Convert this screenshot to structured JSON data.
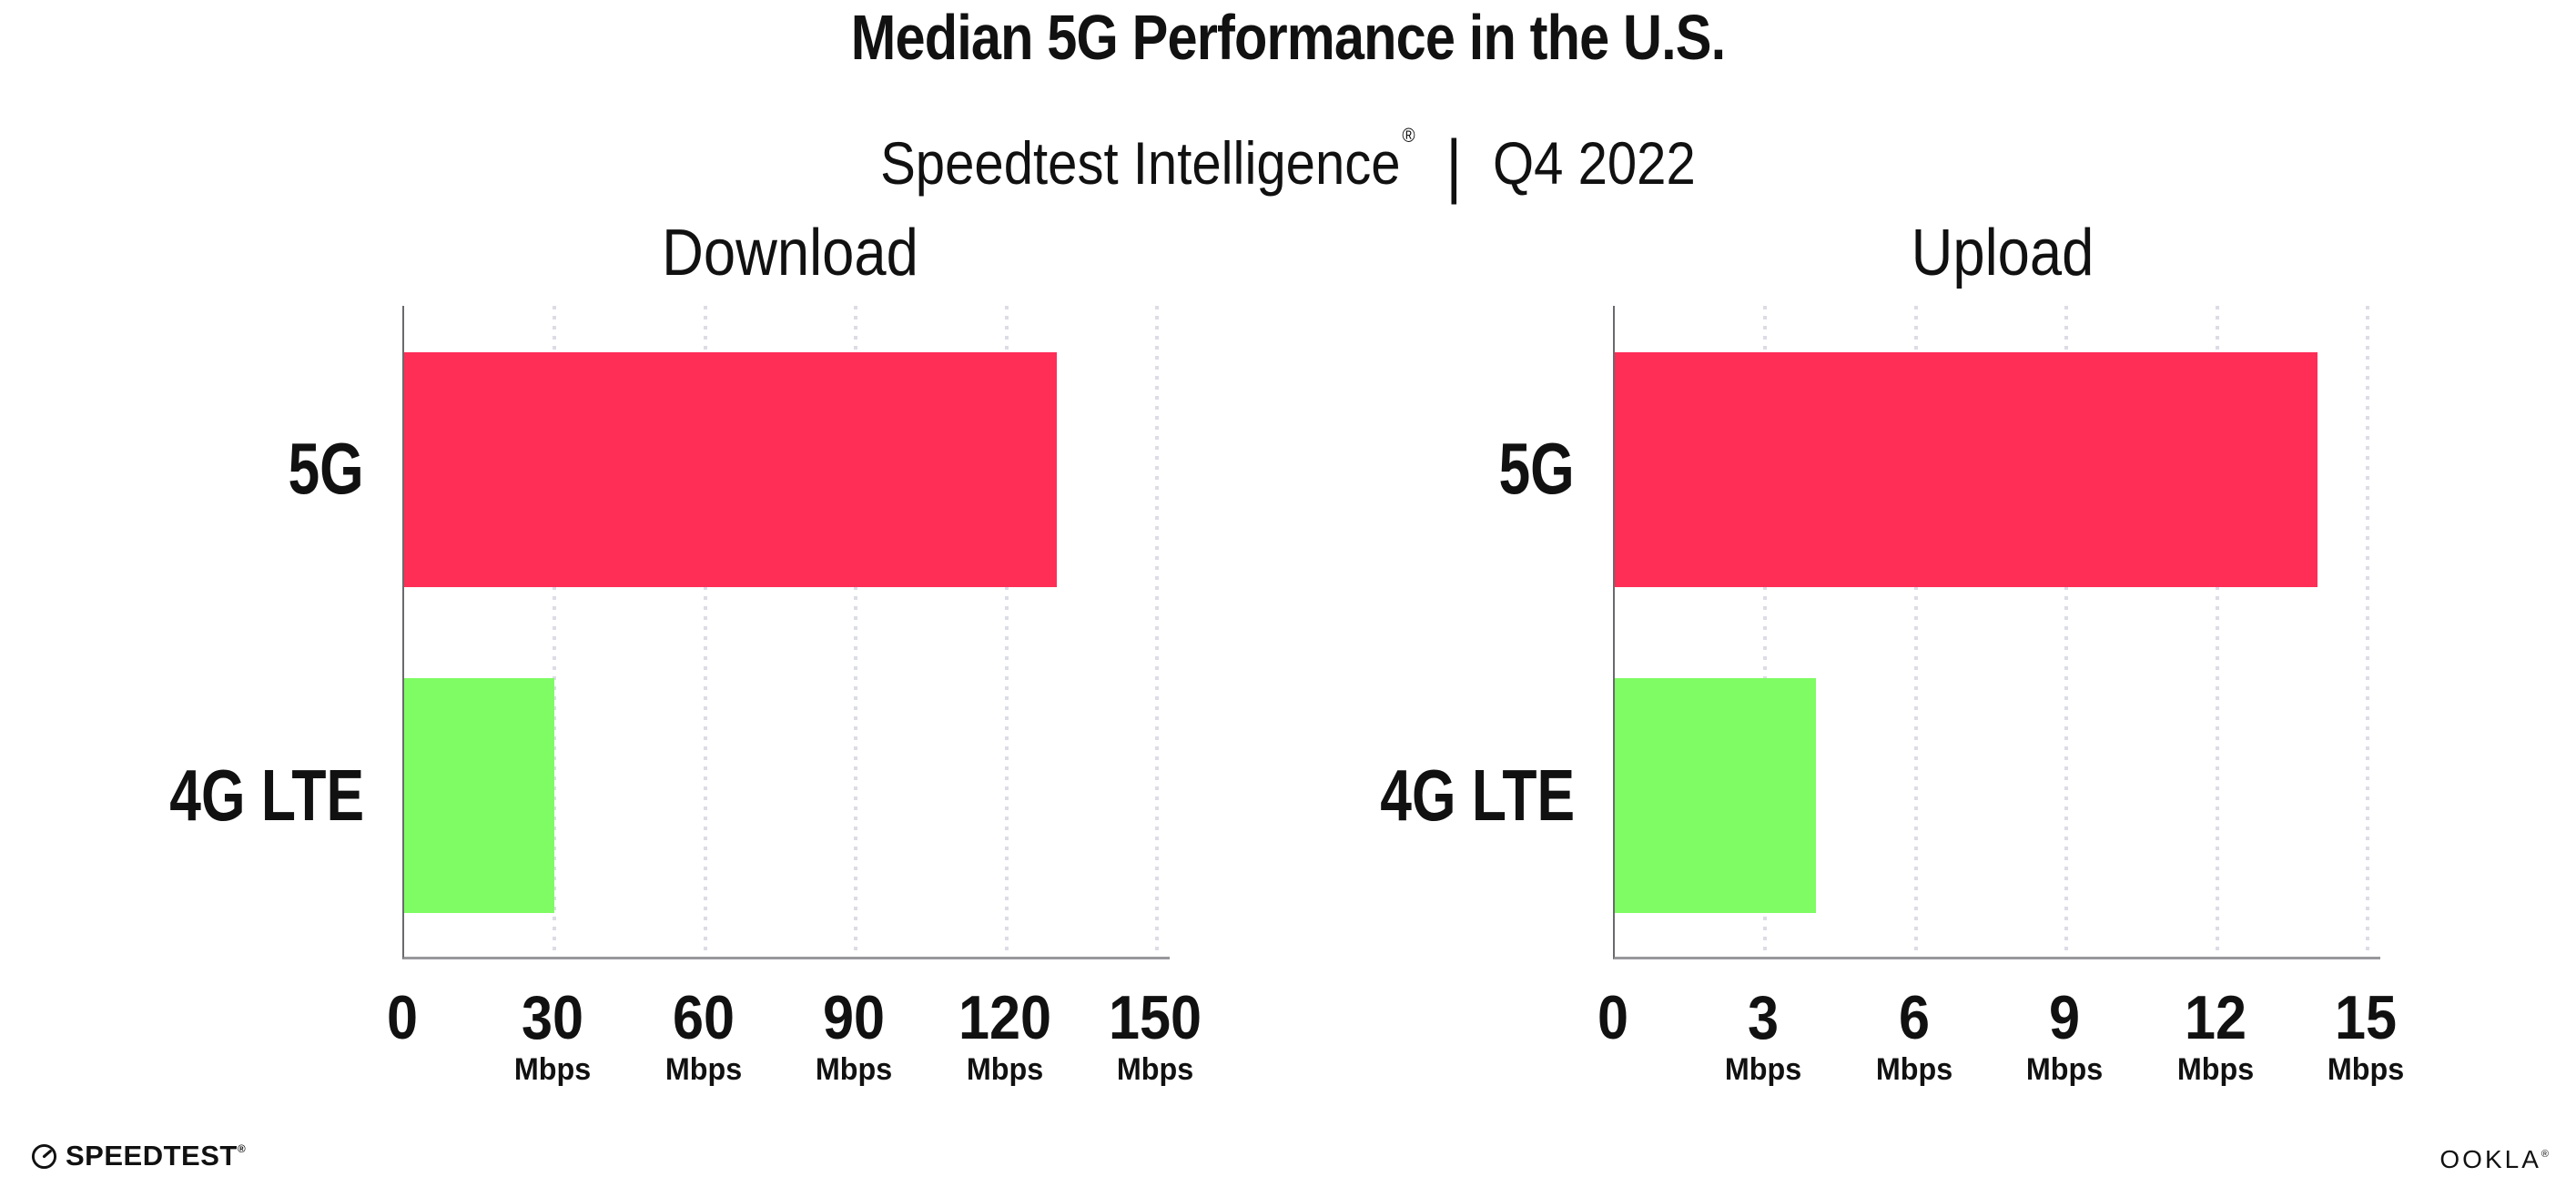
{
  "header": {
    "title": "Median 5G Performance in the U.S.",
    "subtitle_product": "Speedtest Intelligence",
    "subtitle_trademark": "®",
    "subtitle_divider": "|",
    "subtitle_period": "Q4 2022"
  },
  "chart_data": [
    {
      "type": "bar",
      "orientation": "horizontal",
      "title": "Download",
      "categories": [
        "5G",
        "4G LTE"
      ],
      "values": [
        130,
        30
      ],
      "unit": "Mbps",
      "xlabel": "",
      "ylabel": "",
      "xlim": [
        0,
        150
      ],
      "xticks": [
        0,
        30,
        60,
        90,
        120,
        150
      ],
      "bar_colors": [
        "#ff2e56",
        "#7ffc63"
      ],
      "grid": "vertical dotted",
      "legend": "none"
    },
    {
      "type": "bar",
      "orientation": "horizontal",
      "title": "Upload",
      "categories": [
        "5G",
        "4G LTE"
      ],
      "values": [
        14,
        4
      ],
      "unit": "Mbps",
      "xlabel": "",
      "ylabel": "",
      "xlim": [
        0,
        15
      ],
      "xticks": [
        0,
        3,
        6,
        9,
        12,
        15
      ],
      "bar_colors": [
        "#ff2e56",
        "#7ffc63"
      ],
      "grid": "vertical dotted",
      "legend": "none"
    }
  ],
  "footer": {
    "speedtest_icon": "speedtest-gauge-icon",
    "speedtest_wordmark": "SPEEDTEST",
    "speedtest_trademark": "®",
    "ookla_wordmark": "OOKLA",
    "ookla_trademark": "®"
  },
  "colors": {
    "background": "#ffffff",
    "text": "#111111",
    "bar_5g": "#ff2e56",
    "bar_4g_lte": "#7ffc63",
    "gridline": "#dcdce6",
    "x_axis": "#98989c",
    "y_axis": "#6a6a6e"
  }
}
